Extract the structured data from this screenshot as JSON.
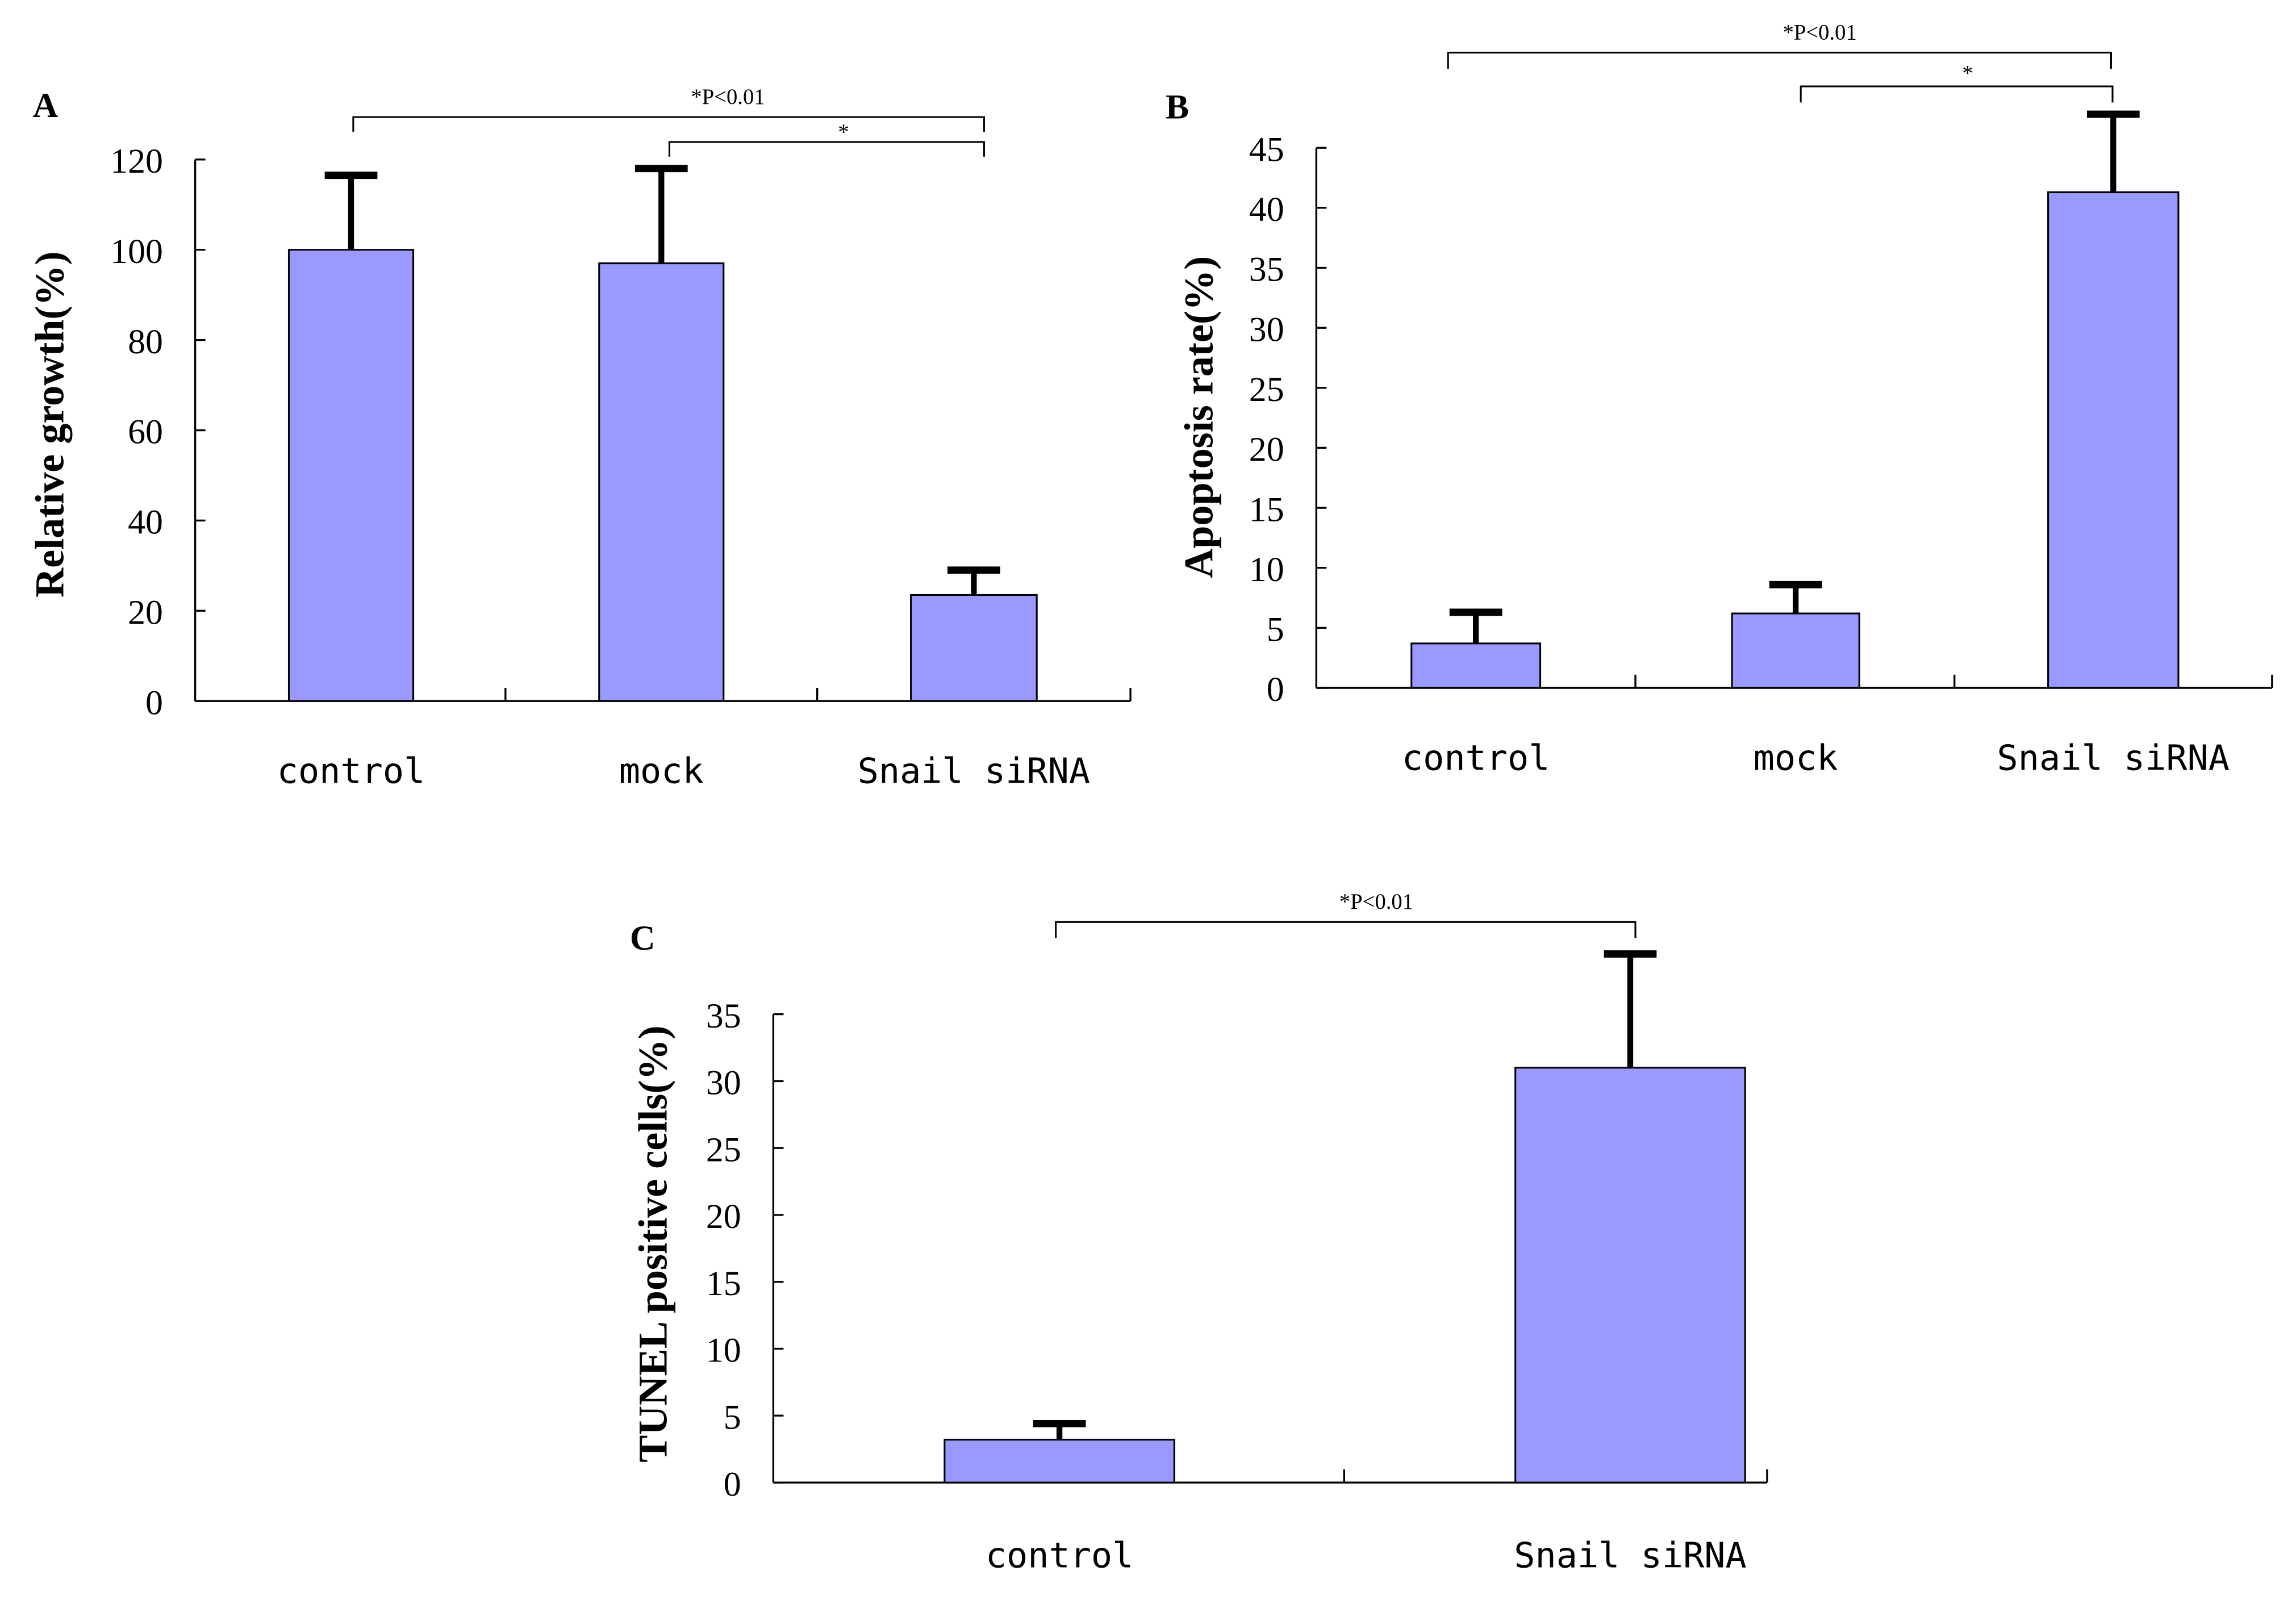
{
  "chart_data": [
    {
      "type": "bar",
      "panel_label": "A",
      "title": "",
      "xlabel": "",
      "ylabel": "Relative growth(%)",
      "ylim": [
        0,
        120
      ],
      "yticks": [
        0,
        20,
        40,
        60,
        80,
        100,
        120
      ],
      "categories": [
        "control",
        "mock",
        "Snail siRNA"
      ],
      "values": [
        100,
        97,
        23.5
      ],
      "error_upper": [
        16.5,
        21,
        5.5
      ],
      "bar_color": "#9999ff",
      "grid": false,
      "annotations": [
        {
          "text": "*P<0.01",
          "from": "control",
          "to": "Snail siRNA"
        },
        {
          "text": "*",
          "from": "mock",
          "to": "Snail siRNA"
        }
      ]
    },
    {
      "type": "bar",
      "panel_label": "B",
      "title": "",
      "xlabel": "",
      "ylabel": "Apoptosis rate(%)",
      "ylim": [
        0,
        45
      ],
      "yticks": [
        0,
        5,
        10,
        15,
        20,
        25,
        30,
        35,
        40,
        45
      ],
      "categories": [
        "control",
        "mock",
        "Snail siRNA"
      ],
      "values": [
        3.7,
        6.2,
        41.3
      ],
      "error_upper": [
        2.6,
        2.4,
        6.5
      ],
      "bar_color": "#9999ff",
      "grid": false,
      "annotations": [
        {
          "text": "*P<0.01",
          "from": "control",
          "to": "Snail siRNA"
        },
        {
          "text": "*",
          "from": "mock",
          "to": "Snail siRNA"
        }
      ]
    },
    {
      "type": "bar",
      "panel_label": "C",
      "title": "",
      "xlabel": "",
      "ylabel": "TUNEL positive cells(%)",
      "ylim": [
        0,
        35
      ],
      "yticks": [
        0,
        5,
        10,
        15,
        20,
        25,
        30,
        35
      ],
      "categories": [
        "control",
        "Snail siRNA"
      ],
      "values": [
        3.2,
        31
      ],
      "error_upper": [
        1.2,
        8.5
      ],
      "bar_color": "#9999ff",
      "grid": false,
      "annotations": [
        {
          "text": "*P<0.01",
          "from": "control",
          "to": "Snail siRNA"
        }
      ]
    }
  ]
}
